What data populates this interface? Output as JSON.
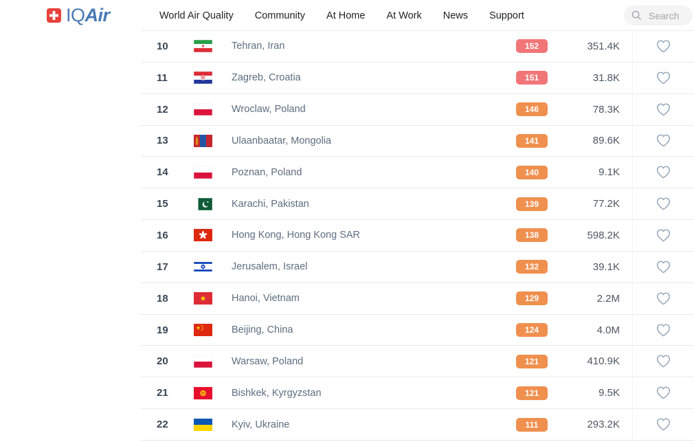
{
  "brand": {
    "logo_iq": "IQ",
    "logo_air": "Air",
    "logo_blue": "#4a7ab5",
    "swiss_red": "#e8413c"
  },
  "nav": {
    "items": [
      {
        "label": "World Air Quality"
      },
      {
        "label": "Community"
      },
      {
        "label": "At Home"
      },
      {
        "label": "At Work"
      },
      {
        "label": "News"
      },
      {
        "label": "Support"
      }
    ]
  },
  "search": {
    "placeholder": "Search"
  },
  "colors": {
    "badge_red": "#f17678",
    "badge_orange": "#f0904f",
    "separator": "#e9e9e9",
    "heart_outline": "#90a5b9"
  },
  "ranking": {
    "rows": [
      {
        "rank": "10",
        "flag": "iran",
        "city": "Tehran, Iran",
        "aqi": "152",
        "aqi_color": "#f17678",
        "followers": "351.4K"
      },
      {
        "rank": "11",
        "flag": "croatia",
        "city": "Zagreb, Croatia",
        "aqi": "151",
        "aqi_color": "#f17678",
        "followers": "31.8K"
      },
      {
        "rank": "12",
        "flag": "poland",
        "city": "Wroclaw, Poland",
        "aqi": "146",
        "aqi_color": "#f0904f",
        "followers": "78.3K"
      },
      {
        "rank": "13",
        "flag": "mongolia",
        "city": "Ulaanbaatar, Mongolia",
        "aqi": "141",
        "aqi_color": "#f0904f",
        "followers": "89.6K"
      },
      {
        "rank": "14",
        "flag": "poland",
        "city": "Poznan, Poland",
        "aqi": "140",
        "aqi_color": "#f0904f",
        "followers": "9.1K"
      },
      {
        "rank": "15",
        "flag": "pakistan",
        "city": "Karachi, Pakistan",
        "aqi": "139",
        "aqi_color": "#f0904f",
        "followers": "77.2K"
      },
      {
        "rank": "16",
        "flag": "hongkong",
        "city": "Hong Kong, Hong Kong SAR",
        "aqi": "138",
        "aqi_color": "#f0904f",
        "followers": "598.2K"
      },
      {
        "rank": "17",
        "flag": "israel",
        "city": "Jerusalem, Israel",
        "aqi": "132",
        "aqi_color": "#f0904f",
        "followers": "39.1K"
      },
      {
        "rank": "18",
        "flag": "vietnam",
        "city": "Hanoi, Vietnam",
        "aqi": "129",
        "aqi_color": "#f0904f",
        "followers": "2.2M"
      },
      {
        "rank": "19",
        "flag": "china",
        "city": "Beijing, China",
        "aqi": "124",
        "aqi_color": "#f0904f",
        "followers": "4.0M"
      },
      {
        "rank": "20",
        "flag": "poland",
        "city": "Warsaw, Poland",
        "aqi": "121",
        "aqi_color": "#f0904f",
        "followers": "410.9K"
      },
      {
        "rank": "21",
        "flag": "kyrgyzstan",
        "city": "Bishkek, Kyrgyzstan",
        "aqi": "121",
        "aqi_color": "#f0904f",
        "followers": "9.5K"
      },
      {
        "rank": "22",
        "flag": "ukraine",
        "city": "Kyiv, Ukraine",
        "aqi": "111",
        "aqi_color": "#f0904f",
        "followers": "293.2K"
      }
    ]
  }
}
